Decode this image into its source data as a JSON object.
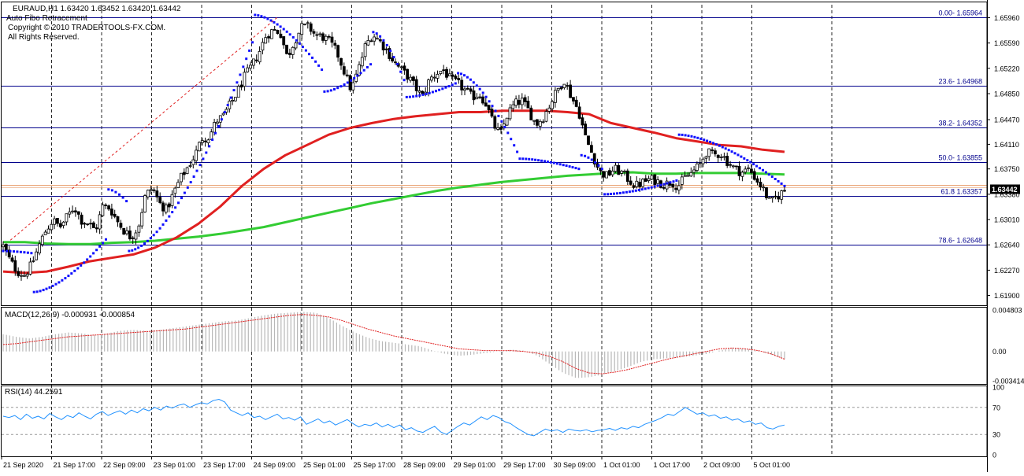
{
  "header": {
    "symbol_line": "EURAUD,H1  1.63420 1.63452 1.63420 1.63442",
    "indicator_name": "Auto Fibo Retracement",
    "copyright_1": "Copyright © 2010 TRADERTOOLS-FX.COM.",
    "copyright_2": "All Rights Reserved."
  },
  "colors": {
    "background": "#ffffff",
    "bull_candle": "#ffffff",
    "bear_candle": "#000000",
    "candle_wick": "#000000",
    "sar": "#1010ff",
    "ma_fast": "#e02020",
    "ma_slow": "#33cc33",
    "fib_line": "#00008b",
    "price_line": "#e8a070",
    "macd_hist": "#b8b8b8",
    "macd_signal": "#e02020",
    "rsi": "#1e90ff",
    "grid_dash": "#000000",
    "separator": "#000000"
  },
  "chart_data": [
    {
      "type": "candlestick",
      "panel": "main",
      "title": "EURAUD,H1",
      "ylim": [
        1.6178,
        1.6615
      ],
      "y_ticks": [
        "1.65960",
        "1.65590",
        "1.65220",
        "1.64850",
        "1.64470",
        "1.64110",
        "1.63750",
        "1.63380",
        "1.63010",
        "1.62640",
        "1.62270",
        "1.61900"
      ],
      "x_ticks": [
        "21 Sep 2020",
        "21 Sep 17:00",
        "22 Sep 09:00",
        "23 Sep 01:00",
        "23 Sep 17:00",
        "24 Sep 09:00",
        "25 Sep 01:00",
        "25 Sep 17:00",
        "28 Sep 09:00",
        "29 Sep 01:00",
        "29 Sep 17:00",
        "30 Sep 09:00",
        "1 Oct 01:00",
        "1 Oct 17:00",
        "2 Oct 09:00",
        "5 Oct 01:00"
      ],
      "current_price": "1.63442",
      "fib_levels": [
        {
          "label": "0.00- 1.65964",
          "value": 1.65964
        },
        {
          "label": "23.6- 1.64968",
          "value": 1.64968
        },
        {
          "label": "38.2- 1.64352",
          "value": 1.64352
        },
        {
          "label": "50.0- 1.63855",
          "value": 1.63855
        },
        {
          "label": "61.8 1.63357",
          "value": 1.63357
        },
        {
          "label": "78.6- 1.62648",
          "value": 1.62648
        }
      ],
      "close_path": [
        1.6262,
        1.624,
        1.6225,
        1.622,
        1.6235,
        1.6262,
        1.6285,
        1.63,
        1.629,
        1.6305,
        1.632,
        1.63,
        1.6295,
        1.6285,
        1.632,
        1.6318,
        1.63,
        1.6285,
        1.6275,
        1.629,
        1.6335,
        1.6348,
        1.6325,
        1.6315,
        1.634,
        1.6362,
        1.6378,
        1.6395,
        1.642,
        1.6422,
        1.6445,
        1.6452,
        1.647,
        1.6488,
        1.651,
        1.6525,
        1.6545,
        1.657,
        1.6578,
        1.6575,
        1.6538,
        1.6562,
        1.6582,
        1.6583,
        1.657,
        1.6568,
        1.656,
        1.6545,
        1.6518,
        1.649,
        1.652,
        1.6555,
        1.6572,
        1.6562,
        1.6548,
        1.6532,
        1.652,
        1.651,
        1.6495,
        1.648,
        1.6505,
        1.6515,
        1.652,
        1.6505,
        1.65,
        1.649,
        1.648,
        1.6485,
        1.647,
        1.644,
        1.6425,
        1.6455,
        1.647,
        1.6475,
        1.646,
        1.644,
        1.645,
        1.647,
        1.649,
        1.6505,
        1.648,
        1.646,
        1.642,
        1.6395,
        1.637,
        1.6365,
        1.6375,
        1.637,
        1.636,
        1.635,
        1.6355,
        1.636,
        1.6358,
        1.6352,
        1.6356,
        1.635,
        1.6362,
        1.637,
        1.638,
        1.64,
        1.6395,
        1.6398,
        1.6385,
        1.6375,
        1.637,
        1.6375,
        1.636,
        1.6345,
        1.6325,
        1.6335,
        1.6344
      ],
      "sar_segments": [
        {
          "side": "above",
          "from": 0.0,
          "to": 0.055,
          "start": 1.6255,
          "end": 1.6252
        },
        {
          "side": "below",
          "from": 0.06,
          "to": 0.2,
          "start": 1.6195,
          "end": 1.6272
        },
        {
          "side": "above",
          "from": 0.205,
          "to": 0.24,
          "start": 1.6345,
          "end": 1.6328
        },
        {
          "side": "below",
          "from": 0.245,
          "to": 0.485,
          "start": 1.6255,
          "end": 1.656
        },
        {
          "side": "above",
          "from": 0.49,
          "to": 0.62,
          "start": 1.66,
          "end": 1.652
        },
        {
          "side": "below",
          "from": 0.625,
          "to": 0.715,
          "start": 1.6488,
          "end": 1.6528
        },
        {
          "side": "above",
          "from": 0.72,
          "to": 0.78,
          "start": 1.6575,
          "end": 1.6505
        },
        {
          "side": "below",
          "from": 0.785,
          "to": 0.88,
          "start": 1.648,
          "end": 1.65
        },
        {
          "side": "above",
          "from": 0.885,
          "to": 1.0,
          "start": 1.6515,
          "end": 1.64
        },
        {
          "side": "below",
          "from": 1.005,
          "to": 1.12,
          "start": 1.639,
          "end": 1.6375
        },
        {
          "side": "above",
          "from": 1.125,
          "to": 1.165,
          "start": 1.6395,
          "end": 1.6375
        },
        {
          "side": "below",
          "from": 1.17,
          "to": 1.31,
          "start": 1.6338,
          "end": 1.6358
        },
        {
          "side": "above",
          "from": 1.315,
          "to": 1.52,
          "start": 1.6425,
          "end": 1.635
        }
      ],
      "ma_fast": [
        1.6225,
        1.6223,
        1.6225,
        1.6232,
        1.624,
        1.6245,
        1.625,
        1.626,
        1.6275,
        1.6295,
        1.632,
        1.635,
        1.6375,
        1.6395,
        1.641,
        1.6425,
        1.6435,
        1.6442,
        1.6448,
        1.6452,
        1.6455,
        1.6458,
        1.6458,
        1.646,
        1.646,
        1.646,
        1.6458,
        1.6455,
        1.6442,
        1.6435,
        1.6428,
        1.642,
        1.6415,
        1.641,
        1.6408,
        1.6403,
        1.64
      ],
      "ma_slow": [
        1.6268,
        1.6268,
        1.6266,
        1.6265,
        1.6265,
        1.6267,
        1.6268,
        1.627,
        1.6273,
        1.6276,
        1.628,
        1.6285,
        1.629,
        1.6297,
        1.6304,
        1.6311,
        1.6318,
        1.6325,
        1.6331,
        1.6337,
        1.6343,
        1.6348,
        1.6352,
        1.6356,
        1.6359,
        1.6362,
        1.6365,
        1.6367,
        1.6369,
        1.637,
        1.6368,
        1.6368,
        1.6369,
        1.6369,
        1.6369,
        1.6368,
        1.6367
      ]
    },
    {
      "type": "bar",
      "panel": "macd",
      "title": "MACD(12,26,9) -0.000931 -0.000854",
      "ylim": [
        -0.0036,
        0.005
      ],
      "y_ticks": [
        "0.004803",
        "0.00",
        "-0.003414"
      ],
      "histogram": [
        0.002,
        0.0017,
        0.0015,
        0.0017,
        0.002,
        0.0022,
        0.0021,
        0.0019,
        0.0021,
        0.0024,
        0.0025,
        0.0024,
        0.0025,
        0.0027,
        0.0029,
        0.0031,
        0.0033,
        0.0035,
        0.0036,
        0.0039,
        0.0042,
        0.0044,
        0.0045,
        0.0046,
        0.0045,
        0.0039,
        0.003,
        0.0022,
        0.0016,
        0.0012,
        0.001,
        0.0008,
        0.0006,
        0.0001,
        -0.0003,
        -0.0005,
        -0.0004,
        -0.0002,
        0.0,
        0.0002,
        0.0001,
        -0.0005,
        -0.0015,
        -0.0025,
        -0.0031,
        -0.003,
        -0.0027,
        -0.0023,
        -0.0018,
        -0.0012,
        -0.0009,
        -0.0008,
        -0.0007,
        -0.0005,
        -0.0003,
        0.0001,
        0.0004,
        0.0003,
        0.0001,
        -0.0004,
        -0.0009
      ],
      "signal": [
        0.0008,
        0.0009,
        0.0011,
        0.0013,
        0.0015,
        0.0017,
        0.0018,
        0.0019,
        0.002,
        0.0021,
        0.0022,
        0.0023,
        0.0024,
        0.0025,
        0.0026,
        0.0028,
        0.003,
        0.0032,
        0.0034,
        0.0036,
        0.0038,
        0.004,
        0.0042,
        0.0043,
        0.0042,
        0.004,
        0.0036,
        0.0031,
        0.0026,
        0.0022,
        0.0018,
        0.0015,
        0.0012,
        0.0009,
        0.0006,
        0.0003,
        0.0002,
        0.0001,
        0.0001,
        0.0001,
        0.0,
        -0.0002,
        -0.0006,
        -0.0012,
        -0.002,
        -0.0025,
        -0.0026,
        -0.0024,
        -0.0021,
        -0.0017,
        -0.0013,
        -0.0009,
        -0.0006,
        -0.0003,
        0.0,
        0.0003,
        0.0004,
        0.0003,
        0.0001,
        -0.0003,
        -0.0009
      ]
    },
    {
      "type": "line",
      "panel": "rsi",
      "title": "RSI(14) 44.2591",
      "ylim": [
        0,
        100
      ],
      "y_ticks": [
        "100",
        "70",
        "30",
        "0"
      ],
      "levels": [
        70,
        30
      ],
      "values": [
        57,
        55,
        58,
        52,
        60,
        54,
        57,
        53,
        61,
        56,
        52,
        58,
        55,
        62,
        57,
        53,
        60,
        64,
        58,
        62,
        65,
        60,
        66,
        62,
        68,
        65,
        70,
        66,
        72,
        69,
        73,
        75,
        70,
        74,
        77,
        75,
        80,
        82,
        78,
        66,
        62,
        58,
        62,
        55,
        57,
        52,
        56,
        60,
        53,
        55,
        51,
        56,
        45,
        49,
        53,
        47,
        50,
        44,
        48,
        52,
        46,
        41,
        45,
        43,
        47,
        41,
        45,
        40,
        44,
        37,
        40,
        35,
        33,
        38,
        42,
        34,
        30,
        36,
        42,
        47,
        44,
        50,
        56,
        52,
        58,
        55,
        49,
        46,
        40,
        35,
        30,
        28,
        33,
        38,
        35,
        37,
        33,
        38,
        36,
        35,
        37,
        34,
        36,
        37,
        39,
        36,
        40,
        38,
        42,
        40,
        45,
        48,
        51,
        55,
        60,
        58,
        64,
        70,
        65,
        60,
        62,
        57,
        59,
        54,
        56,
        51,
        53,
        48,
        50,
        45,
        47,
        40,
        38,
        42,
        44
      ]
    }
  ]
}
